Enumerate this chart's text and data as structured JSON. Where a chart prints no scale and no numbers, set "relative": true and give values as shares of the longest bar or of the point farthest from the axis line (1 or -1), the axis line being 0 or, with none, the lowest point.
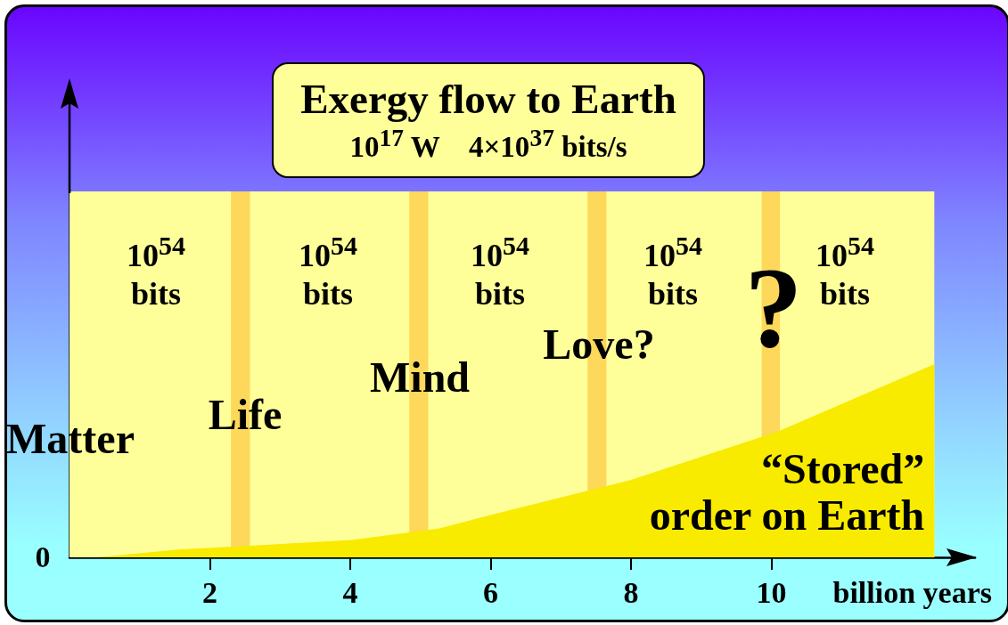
{
  "chart_data": {
    "type": "area",
    "title": "Exergy flow to Earth",
    "subtitle": "10$^{17}$ W    4×10$^{37}$ bits/s",
    "xlabel": "billion years",
    "relative": true,
    "series": [
      {
        "color": "#f8eb00",
        "x": [
          0,
          0.39,
          1.55,
          2.56,
          4.02,
          5.27,
          6.12,
          7.99,
          10.08,
          12.32
        ],
        "values": [
          0,
          0,
          0.04,
          0.06,
          0.09,
          0.15,
          0.23,
          0.4,
          0.65,
          1
        ]
      }
    ],
    "xlim": [
      0,
      12.9
    ],
    "xticks": [
      2,
      4,
      6,
      8,
      10
    ],
    "bands": [
      {
        "axis": "x",
        "from": 0,
        "to": 12.32,
        "color": "#ffff99"
      },
      {
        "axis": "x",
        "from": 2.3,
        "to": 2.57,
        "color": "#fdd85a"
      },
      {
        "axis": "x",
        "from": 4.84,
        "to": 5.11,
        "color": "#fdd85a"
      },
      {
        "axis": "x",
        "from": 7.38,
        "to": 7.65,
        "color": "#fdd85a"
      },
      {
        "axis": "x",
        "from": 9.86,
        "to": 10.12,
        "color": "#fdd85a"
      }
    ],
    "annotations": [
      "10$^{54}$\nbits",
      "10$^{54}$\nbits",
      "10$^{54}$\nbits",
      "10$^{54}$\nbits",
      "10$^{54}$\nbits",
      "Matter",
      "Life",
      "Mind",
      "Love?",
      "?",
      "“Stored”\norder on Earth",
      "0"
    ]
  }
}
